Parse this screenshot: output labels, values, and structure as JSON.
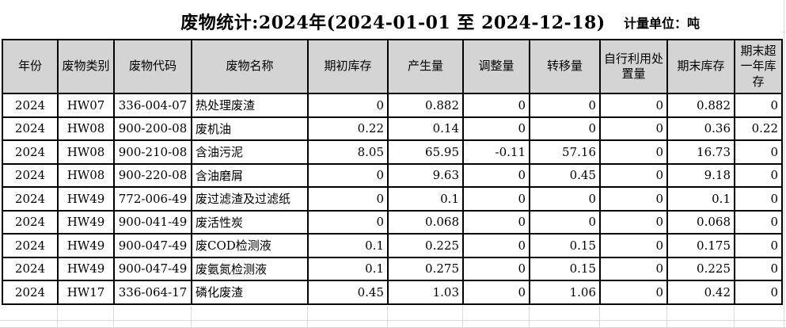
{
  "title": "废物统计:2024年(2024-01-01 至 2024-12-18)",
  "unit_label": "计量单位：吨",
  "colors": {
    "header_bg": "#d4d4d4",
    "table_border": "#000000",
    "gridline": "#d9d9d9",
    "background": "#ffffff",
    "text": "#000000"
  },
  "table": {
    "headers": [
      "年份",
      "废物类别",
      "废物代码",
      "废物名称",
      "期初库存",
      "产生量",
      "调整量",
      "转移量",
      "自行利用处置量",
      "期末库存",
      "期末超一年库存"
    ],
    "rows": [
      [
        "2024",
        "HW07",
        "336-004-07",
        "热处理废渣",
        "0",
        "0.882",
        "0",
        "0",
        "0",
        "0.882",
        "0"
      ],
      [
        "2024",
        "HW08",
        "900-200-08",
        "废机油",
        "0.22",
        "0.14",
        "0",
        "0",
        "0",
        "0.36",
        "0.22"
      ],
      [
        "2024",
        "HW08",
        "900-210-08",
        "含油污泥",
        "8.05",
        "65.95",
        "-0.11",
        "57.16",
        "0",
        "16.73",
        "0"
      ],
      [
        "2024",
        "HW08",
        "900-220-08",
        "含油磨屑",
        "0",
        "9.63",
        "0",
        "0.45",
        "0",
        "9.18",
        "0"
      ],
      [
        "2024",
        "HW49",
        "772-006-49",
        "废过滤渣及过滤纸",
        "0",
        "0.1",
        "0",
        "0",
        "0",
        "0.1",
        "0"
      ],
      [
        "2024",
        "HW49",
        "900-041-49",
        "废活性炭",
        "0",
        "0.068",
        "0",
        "0",
        "0",
        "0.068",
        "0"
      ],
      [
        "2024",
        "HW49",
        "900-047-49",
        "废COD检测液",
        "0.1",
        "0.225",
        "0",
        "0.15",
        "0",
        "0.175",
        "0"
      ],
      [
        "2024",
        "HW49",
        "900-047-49",
        "废氨氮检测液",
        "0.1",
        "0.275",
        "0",
        "0.15",
        "0",
        "0.225",
        "0"
      ],
      [
        "2024",
        "HW17",
        "336-064-17",
        "磷化废渣",
        "0.45",
        "1.03",
        "0",
        "1.06",
        "0",
        "0.42",
        "0"
      ]
    ]
  }
}
